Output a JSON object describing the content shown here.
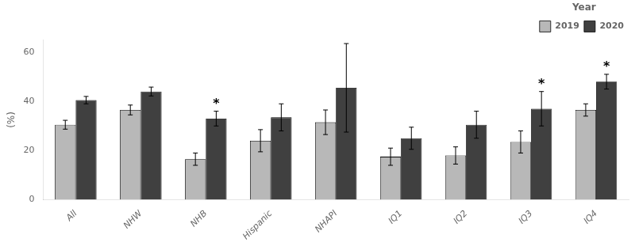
{
  "chart_data": {
    "type": "bar",
    "categories": [
      "All",
      "NHW",
      "NHB",
      "Hispanic",
      "NHAPI",
      "IQ1",
      "IQ2",
      "IQ3",
      "IQ4"
    ],
    "series": [
      {
        "name": "2019",
        "color": "#b8b8b8",
        "values": [
          30.5,
          36.5,
          16.5,
          24.0,
          31.5,
          17.5,
          18.0,
          23.5,
          36.5
        ],
        "errors": [
          1.8,
          2.0,
          2.5,
          4.5,
          5.0,
          3.5,
          3.5,
          4.5,
          2.5
        ]
      },
      {
        "name": "2020",
        "color": "#404040",
        "values": [
          40.5,
          44.0,
          33.0,
          33.5,
          45.5,
          25.0,
          30.5,
          37.0,
          48.0
        ],
        "errors": [
          1.5,
          1.8,
          3.0,
          5.5,
          18.0,
          4.5,
          5.5,
          7.0,
          3.0
        ],
        "annotations": [
          null,
          null,
          "*",
          null,
          null,
          null,
          null,
          "*",
          "*"
        ]
      }
    ],
    "ylabel": "(%)",
    "ylim": [
      0,
      65
    ],
    "yticks": [
      0,
      20,
      40,
      60
    ],
    "grid": false,
    "legend": "upper right",
    "legend_title": "Year"
  }
}
